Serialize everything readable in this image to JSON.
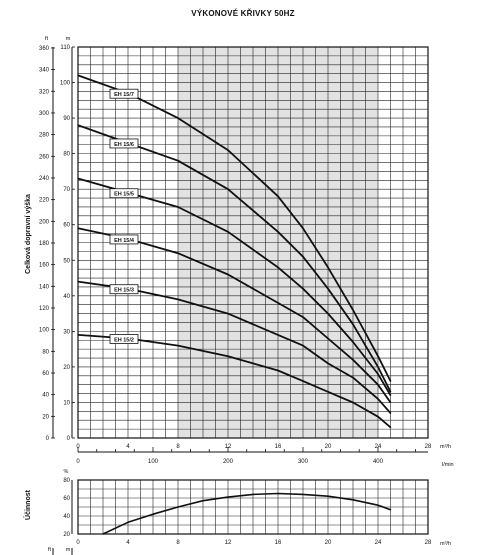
{
  "chart_data": [
    {
      "type": "line",
      "title": "VÝKONOVÉ KŘIVKY 50HZ",
      "ylabel": "Celková dopravní výška",
      "unit_m": "m",
      "unit_ft": "ft",
      "unit_m3h": "m³/h",
      "unit_lmin": "l/min",
      "x_m3h": {
        "lim": [
          0,
          28
        ],
        "ticks": [
          "0",
          "4",
          "8",
          "12",
          "16",
          "20",
          "24",
          "28"
        ],
        "tick_values": [
          0,
          4,
          8,
          12,
          16,
          20,
          24,
          28
        ]
      },
      "x_lmin": {
        "lim": [
          0,
          466.7
        ],
        "ticks": [
          "0",
          "100",
          "200",
          "300",
          "400"
        ],
        "tick_values": [
          0,
          100,
          200,
          300,
          400
        ]
      },
      "y_m": {
        "lim": [
          0,
          110
        ],
        "ticks": [
          "0",
          "10",
          "20",
          "30",
          "40",
          "50",
          "60",
          "70",
          "80",
          "90",
          "100",
          "110"
        ],
        "tick_values": [
          0,
          10,
          20,
          30,
          40,
          50,
          60,
          70,
          80,
          90,
          100,
          110
        ]
      },
      "y_ft": {
        "ticks": [
          "0",
          "20",
          "40",
          "60",
          "80",
          "100",
          "120",
          "140",
          "160",
          "180",
          "200",
          "220",
          "240",
          "260",
          "280",
          "300",
          "320",
          "340",
          "360"
        ],
        "tick_values": [
          0,
          20,
          40,
          60,
          80,
          100,
          120,
          140,
          160,
          180,
          200,
          220,
          240,
          260,
          280,
          300,
          320,
          340,
          360
        ]
      },
      "shaded_range_m3h": [
        8,
        24
      ],
      "grid": true,
      "series": [
        {
          "name": "EH 15/7",
          "x": [
            0,
            4,
            8,
            12,
            16,
            18,
            20,
            22,
            24,
            25
          ],
          "y": [
            102,
            97,
            90,
            81,
            68,
            59,
            48,
            36,
            23,
            16
          ]
        },
        {
          "name": "EH 15/6",
          "x": [
            0,
            4,
            8,
            12,
            16,
            18,
            20,
            22,
            24,
            25
          ],
          "y": [
            88,
            83,
            78,
            70,
            58,
            51,
            42,
            32,
            20,
            13
          ]
        },
        {
          "name": "EH 15/5",
          "x": [
            0,
            4,
            8,
            12,
            16,
            18,
            20,
            22,
            24,
            25
          ],
          "y": [
            73,
            69,
            65,
            58,
            48,
            42,
            35,
            27,
            18,
            12
          ]
        },
        {
          "name": "EH 15/4",
          "x": [
            0,
            4,
            8,
            12,
            16,
            18,
            20,
            22,
            24,
            25
          ],
          "y": [
            59,
            56,
            52,
            46,
            38,
            34,
            28,
            22,
            15,
            10
          ]
        },
        {
          "name": "EH 15/3",
          "x": [
            0,
            4,
            8,
            12,
            16,
            18,
            20,
            22,
            24,
            25
          ],
          "y": [
            44,
            42,
            39,
            35,
            29,
            26,
            21,
            17,
            11,
            7
          ]
        },
        {
          "name": "EH 15/2",
          "x": [
            0,
            4,
            8,
            12,
            16,
            18,
            20,
            22,
            24,
            25
          ],
          "y": [
            29,
            28,
            26,
            23,
            19,
            16,
            13,
            10,
            6,
            3
          ]
        }
      ]
    },
    {
      "type": "line",
      "ylabel": "Účinnost",
      "unit_pct": "%",
      "unit_m3h": "m³/h",
      "x_m3h": {
        "lim": [
          0,
          28
        ],
        "ticks": [
          "0",
          "4",
          "8",
          "12",
          "16",
          "20",
          "24",
          "28"
        ],
        "tick_values": [
          0,
          4,
          8,
          12,
          16,
          20,
          24,
          28
        ]
      },
      "y": {
        "lim": [
          20,
          80
        ],
        "ticks": [
          "20",
          "40",
          "60",
          "80"
        ],
        "tick_values": [
          20,
          40,
          60,
          80
        ]
      },
      "grid": true,
      "series": [
        {
          "x": [
            2,
            4,
            6,
            8,
            10,
            12,
            14,
            16,
            18,
            20,
            22,
            24,
            25
          ],
          "y": [
            20,
            33,
            42,
            50,
            57,
            61,
            64,
            65,
            64,
            62,
            58,
            52,
            47
          ]
        }
      ]
    },
    {
      "type": "line",
      "partial": true,
      "unit_ft": "ft",
      "unit_m": "m"
    }
  ]
}
